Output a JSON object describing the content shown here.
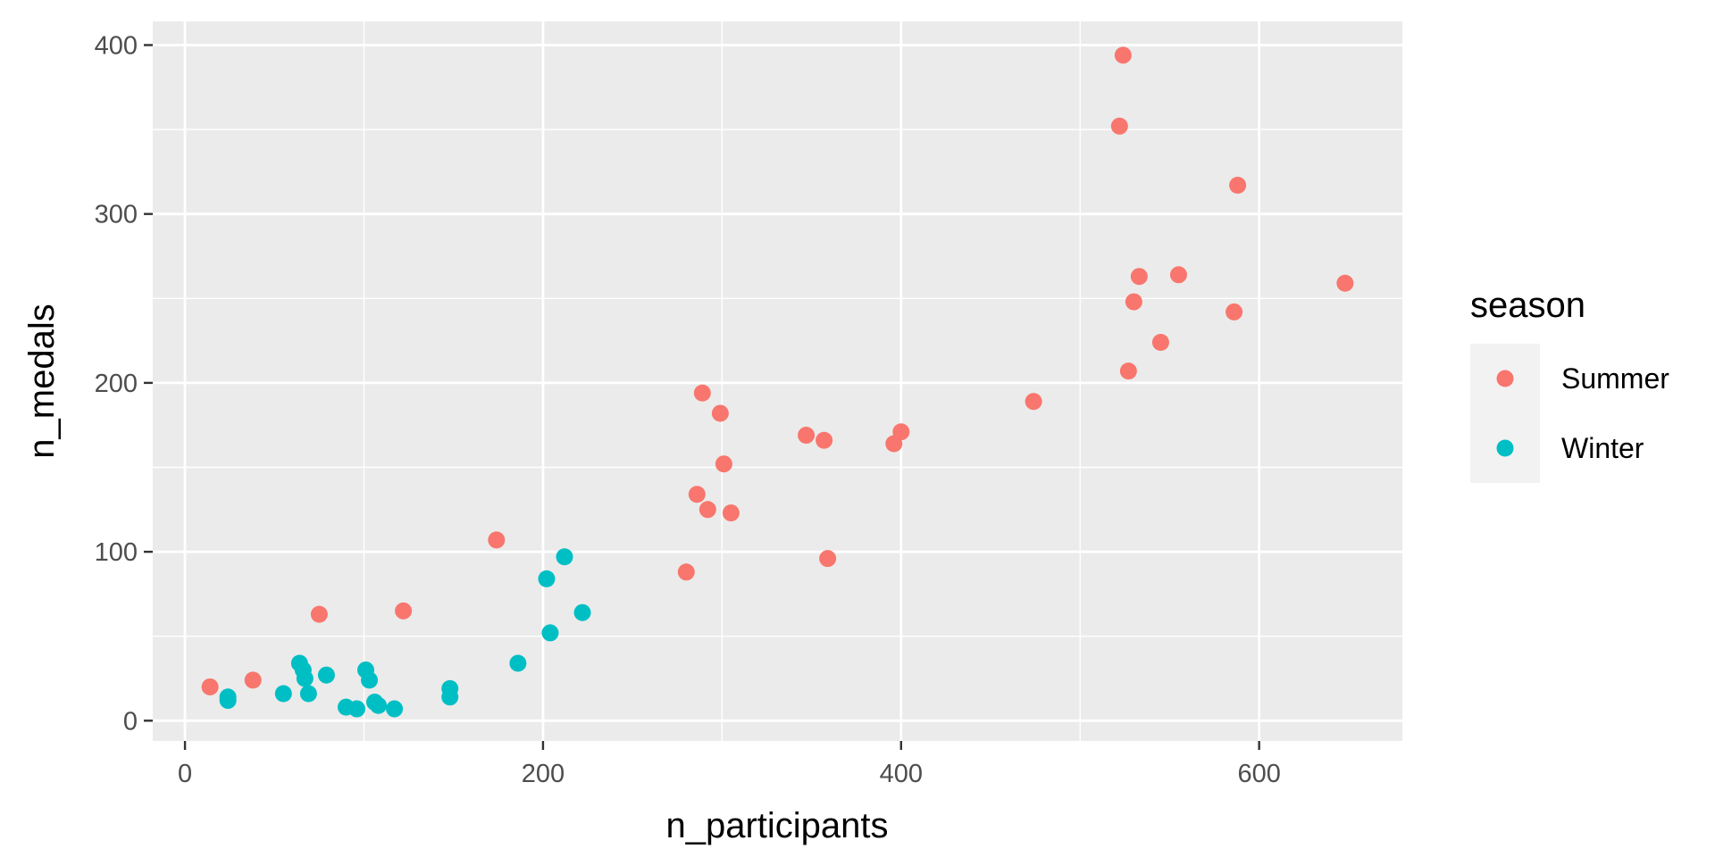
{
  "chart_data": {
    "type": "scatter",
    "title": "",
    "xlabel": "n_participants",
    "ylabel": "n_medals",
    "xlim": [
      -18,
      680
    ],
    "ylim": [
      -12,
      414
    ],
    "x_ticks": [
      0,
      200,
      400,
      600
    ],
    "y_ticks": [
      0,
      100,
      200,
      300,
      400
    ],
    "grid": true,
    "legend": {
      "title": "season",
      "position": "right"
    },
    "series": [
      {
        "name": "Summer",
        "color": "#F8766D",
        "points": [
          [
            14,
            20
          ],
          [
            38,
            24
          ],
          [
            75,
            63
          ],
          [
            122,
            65
          ],
          [
            174,
            107
          ],
          [
            280,
            88
          ],
          [
            286,
            134
          ],
          [
            289,
            194
          ],
          [
            292,
            125
          ],
          [
            299,
            182
          ],
          [
            301,
            152
          ],
          [
            305,
            123
          ],
          [
            347,
            169
          ],
          [
            357,
            166
          ],
          [
            359,
            96
          ],
          [
            396,
            164
          ],
          [
            400,
            171
          ],
          [
            474,
            189
          ],
          [
            522,
            352
          ],
          [
            524,
            394
          ],
          [
            527,
            207
          ],
          [
            530,
            248
          ],
          [
            533,
            263
          ],
          [
            545,
            224
          ],
          [
            555,
            264
          ],
          [
            586,
            242
          ],
          [
            588,
            317
          ],
          [
            648,
            259
          ]
        ]
      },
      {
        "name": "Winter",
        "color": "#00BFC4",
        "points": [
          [
            24,
            12
          ],
          [
            24,
            14
          ],
          [
            55,
            16
          ],
          [
            64,
            34
          ],
          [
            66,
            30
          ],
          [
            67,
            25
          ],
          [
            69,
            16
          ],
          [
            79,
            27
          ],
          [
            90,
            8
          ],
          [
            96,
            7
          ],
          [
            101,
            30
          ],
          [
            103,
            24
          ],
          [
            106,
            11
          ],
          [
            108,
            9
          ],
          [
            117,
            7
          ],
          [
            148,
            19
          ],
          [
            148,
            14
          ],
          [
            186,
            34
          ],
          [
            202,
            84
          ],
          [
            204,
            52
          ],
          [
            212,
            97
          ],
          [
            222,
            64
          ]
        ]
      }
    ]
  }
}
